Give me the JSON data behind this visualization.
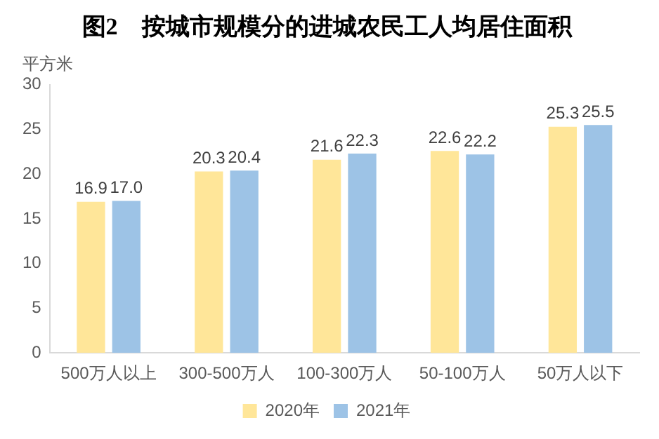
{
  "chart_data": {
    "type": "bar",
    "title": "图2　按城市规模分的进城农民工人均居住面积",
    "ylabel": "平方米",
    "categories": [
      "500万人以上",
      "300-500万人",
      "100-300万人",
      "50-100万人",
      "50万人以下"
    ],
    "series": [
      {
        "name": "2020年",
        "color": "#ffe699",
        "values": [
          16.9,
          20.3,
          21.6,
          22.6,
          25.3
        ],
        "value_labels": [
          "16.9",
          "20.3",
          "21.6",
          "22.6",
          "25.3"
        ]
      },
      {
        "name": "2021年",
        "color": "#9dc3e6",
        "values": [
          17.0,
          20.4,
          22.3,
          22.2,
          25.5
        ],
        "value_labels": [
          "17.0",
          "20.4",
          "22.3",
          "22.2",
          "25.5"
        ]
      }
    ],
    "ylim": [
      0,
      30
    ],
    "yticks": [
      0,
      5,
      10,
      15,
      20,
      25,
      30
    ],
    "grid": false,
    "legend": "bottom"
  }
}
